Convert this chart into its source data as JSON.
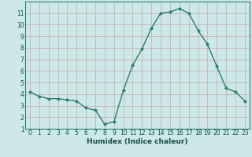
{
  "x": [
    0,
    1,
    2,
    3,
    4,
    5,
    6,
    7,
    8,
    9,
    10,
    11,
    12,
    13,
    14,
    15,
    16,
    17,
    18,
    19,
    20,
    21,
    22,
    23
  ],
  "y": [
    4.2,
    3.8,
    3.6,
    3.6,
    3.5,
    3.4,
    2.8,
    2.6,
    1.4,
    1.6,
    4.3,
    6.5,
    7.9,
    9.7,
    11.0,
    11.1,
    11.4,
    11.0,
    9.5,
    8.3,
    6.4,
    4.5,
    4.2,
    3.4
  ],
  "line_color": "#2e7d6e",
  "bg_color": "#cce8e8",
  "grid_color": "#c8a8a8",
  "xlabel": "Humidex (Indice chaleur)",
  "xlim": [
    -0.5,
    23.5
  ],
  "ylim": [
    1,
    12
  ],
  "yticks": [
    1,
    2,
    3,
    4,
    5,
    6,
    7,
    8,
    9,
    10,
    11
  ],
  "xticks": [
    0,
    1,
    2,
    3,
    4,
    5,
    6,
    7,
    8,
    9,
    10,
    11,
    12,
    13,
    14,
    15,
    16,
    17,
    18,
    19,
    20,
    21,
    22,
    23
  ],
  "tick_fontsize": 5.5,
  "label_fontsize": 6.5,
  "marker": "D",
  "marker_size": 2.0,
  "linewidth": 1.0
}
